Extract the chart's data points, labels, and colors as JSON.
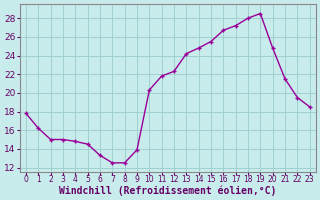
{
  "x": [
    0,
    1,
    2,
    3,
    4,
    5,
    6,
    7,
    8,
    9,
    10,
    11,
    12,
    13,
    14,
    15,
    16,
    17,
    18,
    19,
    20,
    21,
    22,
    23
  ],
  "y": [
    17.8,
    16.2,
    15.0,
    15.0,
    14.8,
    14.5,
    13.3,
    12.5,
    12.5,
    13.9,
    20.3,
    21.8,
    22.3,
    24.2,
    24.8,
    25.5,
    26.7,
    27.2,
    28.0,
    28.5,
    24.8,
    21.5,
    19.5,
    18.5
  ],
  "line_color": "#990099",
  "marker": "+",
  "marker_size": 3.5,
  "marker_lw": 1.0,
  "background_color": "#c8ecec",
  "grid_color": "#a0d0d0",
  "xlabel": "Windchill (Refroidissement éolien,°C)",
  "xlabel_fontsize": 7,
  "ylabel_ticks": [
    12,
    14,
    16,
    18,
    20,
    22,
    24,
    26,
    28
  ],
  "ylim": [
    11.5,
    29.5
  ],
  "xlim": [
    -0.5,
    23.5
  ],
  "tick_color": "#660066",
  "ytick_fontsize": 6.5,
  "xtick_fontsize": 5.5,
  "axis_color": "#888888",
  "linewidth": 1.0
}
